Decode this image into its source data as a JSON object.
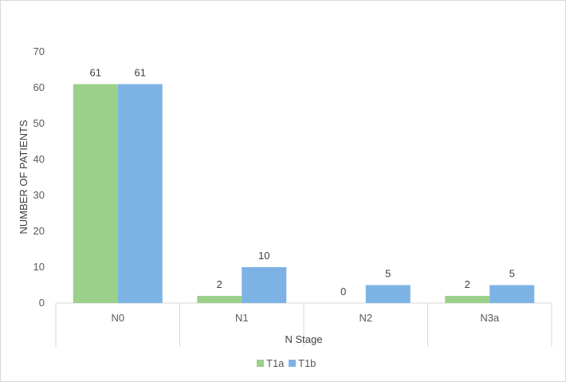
{
  "chart_data": {
    "type": "bar",
    "categories": [
      "N0",
      "N1",
      "N2",
      "N3a"
    ],
    "series": [
      {
        "name": "T1a",
        "values": [
          61,
          2,
          0,
          2
        ],
        "color": "#9bd08a"
      },
      {
        "name": "T1b",
        "values": [
          61,
          10,
          5,
          5
        ],
        "color": "#7db3e4"
      }
    ],
    "title": "",
    "xlabel": "N Stage",
    "ylabel": "NUMBER OF PATIENTS",
    "ylim": [
      0,
      70
    ],
    "yticks": [
      0,
      10,
      20,
      30,
      40,
      50,
      60,
      70
    ],
    "grid": false,
    "legend_position": "bottom"
  }
}
